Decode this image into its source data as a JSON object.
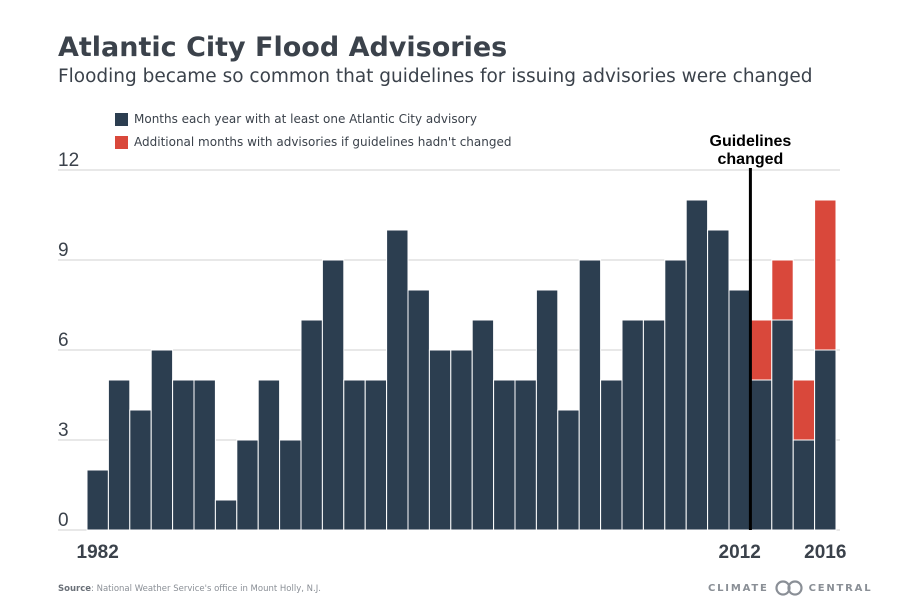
{
  "title": "Atlantic City Flood Advisories",
  "subtitle": "Flooding became so common that guidelines for issuing advisories were changed",
  "legend": {
    "actual": "Months each year with at least one Atlantic City advisory",
    "additional": "Additional months with advisories if guidelines hadn't changed"
  },
  "annotation": {
    "line1": "Guidelines",
    "line2": "changed",
    "year": 2012
  },
  "source": {
    "label": "Source",
    "text": ": National Weather Service's office in Mount Holly, N.J."
  },
  "brand": {
    "left": "CLIMATE",
    "right": "CENTRAL",
    "icon": "climate-central-logo-icon"
  },
  "colors": {
    "actual": "#2c3e50",
    "additional": "#d9483b",
    "grid": "#d0d0d0",
    "marker": "#000000"
  },
  "chart_data": {
    "type": "bar",
    "stacked": true,
    "title": "Atlantic City Flood Advisories",
    "x": [
      1982,
      1983,
      1984,
      1985,
      1986,
      1987,
      1988,
      1989,
      1990,
      1991,
      1992,
      1993,
      1994,
      1995,
      1996,
      1997,
      1998,
      1999,
      2000,
      2001,
      2002,
      2003,
      2004,
      2005,
      2006,
      2007,
      2008,
      2009,
      2010,
      2011,
      2012,
      2013,
      2014,
      2015,
      2016
    ],
    "x_tick_labels": [
      "1982",
      "2012",
      "2016"
    ],
    "series": [
      {
        "name": "Months each year with at least one Atlantic City advisory",
        "values": [
          2,
          5,
          4,
          6,
          5,
          5,
          1,
          3,
          5,
          3,
          7,
          9,
          5,
          5,
          10,
          8,
          6,
          6,
          7,
          5,
          5,
          8,
          4,
          9,
          5,
          7,
          7,
          9,
          11,
          10,
          8,
          5,
          7,
          3,
          6
        ]
      },
      {
        "name": "Additional months with advisories if guidelines hadn't changed",
        "values": [
          0,
          0,
          0,
          0,
          0,
          0,
          0,
          0,
          0,
          0,
          0,
          0,
          0,
          0,
          0,
          0,
          0,
          0,
          0,
          0,
          0,
          0,
          0,
          0,
          0,
          0,
          0,
          0,
          0,
          0,
          0,
          2,
          2,
          2,
          5
        ]
      }
    ],
    "y_ticks": [
      0,
      3,
      6,
      9,
      12
    ],
    "ylim": [
      0,
      12
    ],
    "grid": true,
    "legend": "top-left"
  }
}
